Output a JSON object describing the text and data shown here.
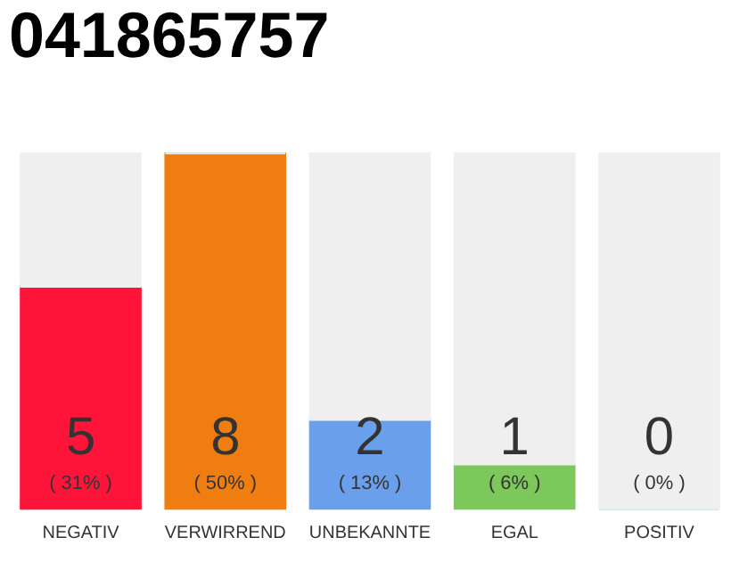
{
  "chart_data": {
    "type": "bar",
    "title": "041865757",
    "stacked": true,
    "categories": [
      "NEGATIV",
      "VERWIRREND",
      "UNBEKANNTE",
      "EGAL",
      "POSITIV"
    ],
    "series": [
      {
        "colors": [
          "#ff1439",
          "#f07d0f",
          "#6aa0eb",
          "#7dc85a",
          "#22a845"
        ],
        "values": [
          5,
          8,
          2,
          1,
          0
        ],
        "value_labels": [
          "5",
          "8",
          "2",
          "1",
          "0"
        ]
      },
      {
        "color": "#efefef",
        "values": [
          3,
          0,
          6,
          7,
          8
        ]
      }
    ],
    "annotations": [
      "( 31% )",
      "( 50% )",
      "( 13% )",
      "( 6% )",
      "( 0% )"
    ],
    "grid": false
  }
}
